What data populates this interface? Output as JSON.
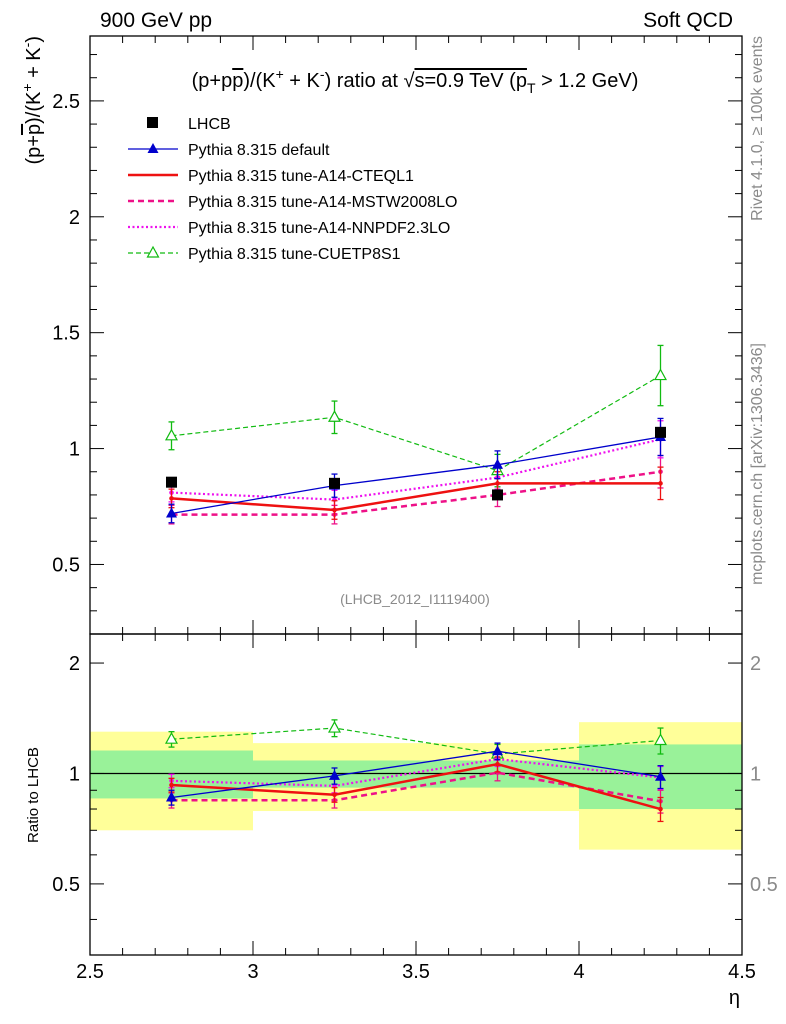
{
  "header": {
    "left": "900 GeV pp",
    "right": "Soft QCD"
  },
  "side_text": {
    "rivet": "Rivet 4.1.0, ≥ 100k events",
    "mcplots": "mcplots.cern.ch [arXiv:1306.3436]"
  },
  "colors": {
    "lhcb": "#000000",
    "default": "#0000cc",
    "cteql1": "#ee1111",
    "mstw": "#ee1188",
    "nnpdf": "#ee11ee",
    "cuetp": "#11bb11",
    "band_inner": "#99f299",
    "band_outer": "#ffff99"
  },
  "chart_data": {
    "type": "line",
    "title": "(p+p̄)/(K⁺ + K⁻) ratio at √s=0.9 TeV (p_T > 1.2 GeV)",
    "title_parts": {
      "t1": "(p+p",
      "pbar": "p",
      "t2": ")/(K",
      "sup1": "+",
      "t3": " + K",
      "sup2": "-",
      "t4": ") ratio at ",
      "sqrt": "√",
      "t5": "s=0.9 TeV (p",
      "sub": "T",
      "t6": " > 1.2 GeV)"
    },
    "ylabel_parts": {
      "t1": "(p+",
      "pbar": "p",
      "t2": ")/(K",
      "sup1": "+",
      "t3": " + K",
      "sup2": "-",
      "t4": ")"
    },
    "xlabel": "η",
    "ratio_ylabel": "Ratio to LHCB",
    "analysis_tag": "(LHCB_2012_I1119400)",
    "xlim": [
      2.5,
      4.5
    ],
    "ylim": [
      0.2,
      2.78
    ],
    "ratio_ylim": [
      0.32,
      2.4
    ],
    "x_ticks": [
      "2.5",
      "3",
      "3.5",
      "4",
      "4.5"
    ],
    "y_ticks": [
      "0.5",
      "1",
      "1.5",
      "2",
      "2.5"
    ],
    "ratio_y_ticks": [
      "0.5",
      "1",
      "2"
    ],
    "bins": [
      [
        2.5,
        3.0
      ],
      [
        3.0,
        3.5
      ],
      [
        3.5,
        4.0
      ],
      [
        4.0,
        4.5
      ]
    ],
    "x": [
      2.75,
      3.25,
      3.75,
      4.25
    ],
    "series": [
      {
        "key": "lhcb",
        "name": "LHCB",
        "values": [
          0.855,
          0.85,
          0.8,
          1.07
        ],
        "style": "data"
      },
      {
        "key": "default",
        "name": "Pythia 8.315 default",
        "values": [
          0.72,
          0.84,
          0.93,
          1.05
        ],
        "errors": [
          0.04,
          0.05,
          0.06,
          0.08
        ],
        "style": "solid-thin",
        "marker": "triangle-filled"
      },
      {
        "key": "cteql1",
        "name": "Pythia 8.315 tune-A14-CTEQL1",
        "values": [
          0.785,
          0.735,
          0.85,
          0.85
        ],
        "errors": [
          0.04,
          0.04,
          0.05,
          0.07
        ],
        "style": "solid-thick",
        "marker": "none"
      },
      {
        "key": "mstw",
        "name": "Pythia 8.315 tune-A14-MSTW2008LO",
        "values": [
          0.715,
          0.715,
          0.8,
          0.9
        ],
        "errors": [
          0.04,
          0.04,
          0.05,
          0.07
        ],
        "style": "dashed",
        "marker": "none"
      },
      {
        "key": "nnpdf",
        "name": "Pythia 8.315 tune-A14-NNPDF2.3LO",
        "values": [
          0.81,
          0.78,
          0.875,
          1.04
        ],
        "errors": [
          0.04,
          0.04,
          0.05,
          0.08
        ],
        "style": "dotted",
        "marker": "none"
      },
      {
        "key": "cuetp",
        "name": "Pythia 8.315 tune-CUETP8S1",
        "values": [
          1.055,
          1.135,
          0.905,
          1.315
        ],
        "errors": [
          0.06,
          0.07,
          0.07,
          0.13
        ],
        "style": "dashed-thin",
        "marker": "triangle-open"
      }
    ],
    "ratio_series": [
      {
        "key": "default",
        "values": [
          0.86,
          0.985,
          1.15,
          0.98
        ],
        "errors": [
          0.04,
          0.05,
          0.06,
          0.07
        ]
      },
      {
        "key": "cteql1",
        "values": [
          0.93,
          0.875,
          1.06,
          0.8
        ],
        "errors": [
          0.04,
          0.04,
          0.05,
          0.06
        ]
      },
      {
        "key": "mstw",
        "values": [
          0.845,
          0.845,
          1.005,
          0.84
        ],
        "errors": [
          0.04,
          0.04,
          0.05,
          0.06
        ]
      },
      {
        "key": "nnpdf",
        "values": [
          0.955,
          0.925,
          1.095,
          0.975
        ],
        "errors": [
          0.04,
          0.04,
          0.05,
          0.07
        ]
      },
      {
        "key": "cuetp",
        "values": [
          1.24,
          1.33,
          1.13,
          1.23
        ],
        "errors": [
          0.06,
          0.07,
          0.07,
          0.1
        ]
      }
    ],
    "bands": {
      "inner": [
        [
          0.855,
          1.155
        ],
        [
          0.915,
          1.085
        ],
        [
          0.915,
          1.085
        ],
        [
          0.8,
          1.2
        ]
      ],
      "outer": [
        [
          0.7,
          1.3
        ],
        [
          0.79,
          1.21
        ],
        [
          0.79,
          1.21
        ],
        [
          0.62,
          1.38
        ]
      ]
    }
  }
}
